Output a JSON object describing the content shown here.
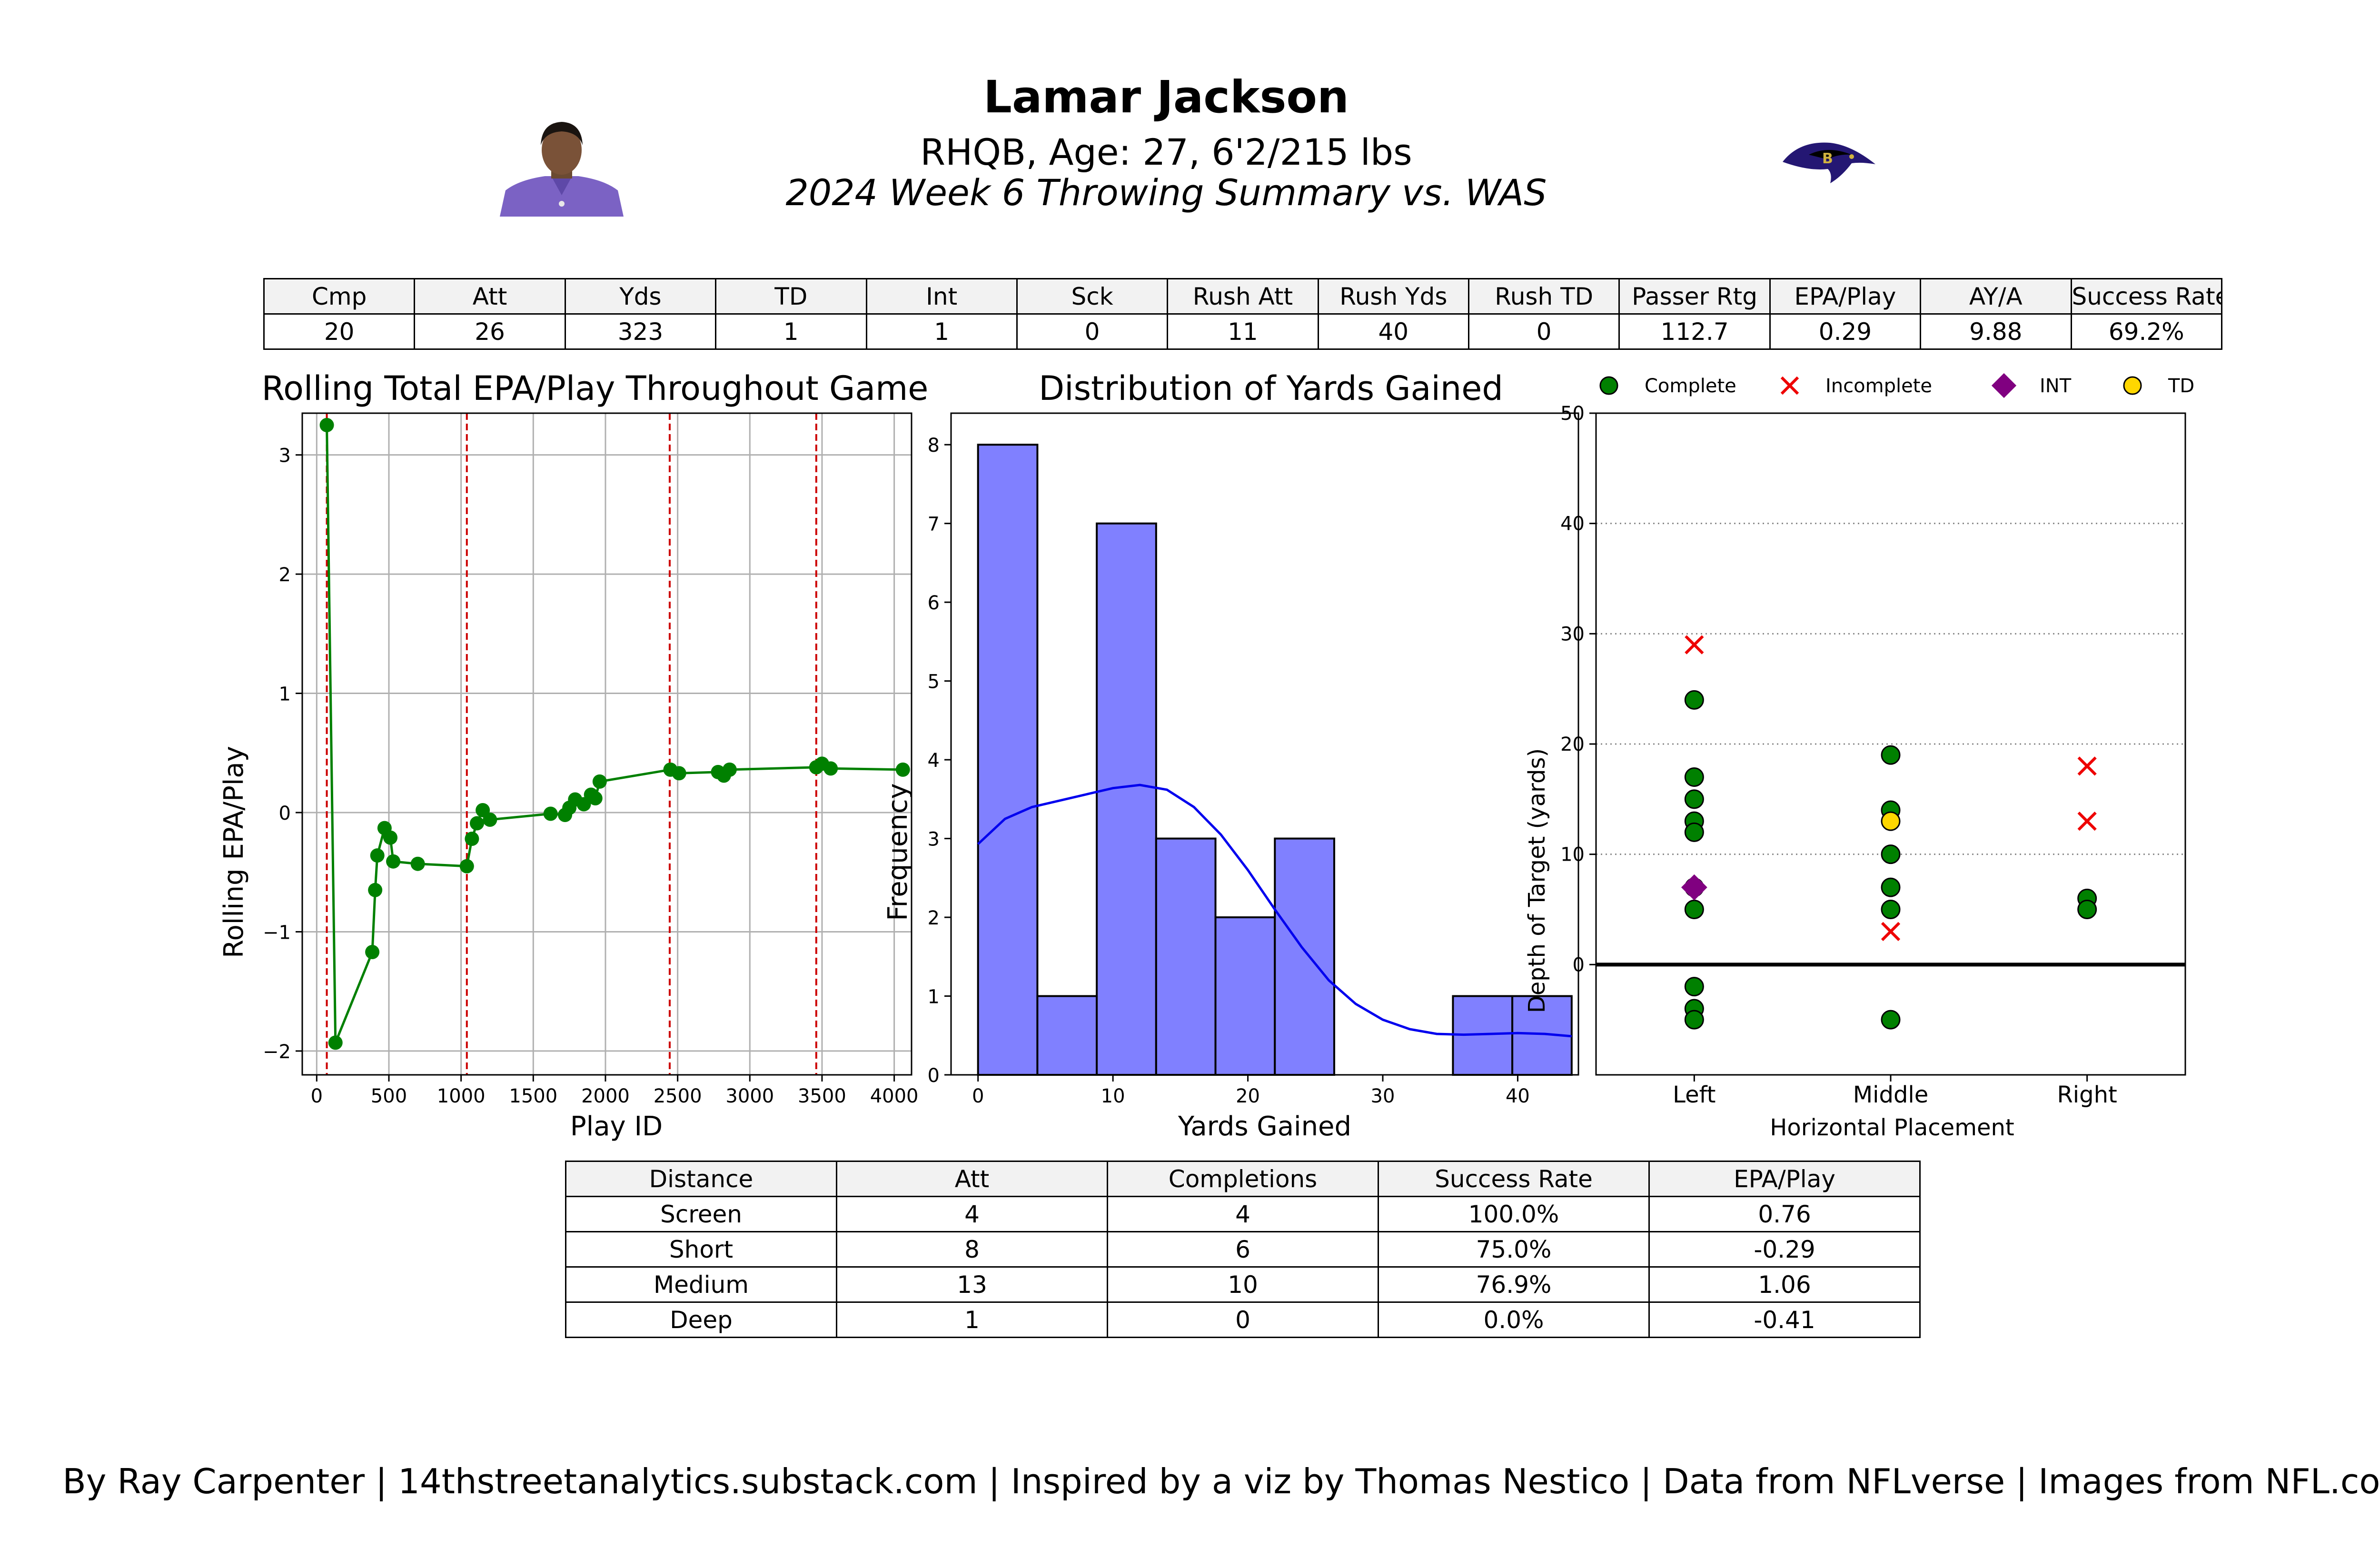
{
  "header": {
    "name": "Lamar Jackson",
    "subtitle": "RHQB, Age: 27, 6'2/215 lbs",
    "game_title": "2024 Week 6 Throwing Summary vs. WAS"
  },
  "stats_table": {
    "headers": [
      "Cmp",
      "Att",
      "Yds",
      "TD",
      "Int",
      "Sck",
      "Rush Att",
      "Rush Yds",
      "Rush TD",
      "Passer Rtg",
      "EPA/Play",
      "AY/A",
      "Success Rate"
    ],
    "values": [
      "20",
      "26",
      "323",
      "1",
      "1",
      "0",
      "11",
      "40",
      "0",
      "112.7",
      "0.29",
      "9.88",
      "69.2%"
    ]
  },
  "distance_table": {
    "headers": [
      "Distance",
      "Att",
      "Completions",
      "Success Rate",
      "EPA/Play"
    ],
    "rows": [
      [
        "Screen",
        "4",
        "4",
        "100.0%",
        "0.76"
      ],
      [
        "Short",
        "8",
        "6",
        "75.0%",
        "-0.29"
      ],
      [
        "Medium",
        "13",
        "10",
        "76.9%",
        "1.06"
      ],
      [
        "Deep",
        "1",
        "0",
        "0.0%",
        "-0.41"
      ]
    ]
  },
  "footer": "By Ray Carpenter | 14thstreetanalytics.substack.com | Inspired by a viz by Thomas Nestico | Data from NFLverse | Images from NFL.com",
  "colors": {
    "line": "#008000",
    "quarter_line": "#cc0000",
    "hist_fill": "#8080ff",
    "kde": "#0000ee",
    "complete": "#008000",
    "incomplete": "#ee0000",
    "int": "#800080",
    "td": "#ffd700",
    "team_purple": "#241773",
    "jersey": "#7b62c4"
  },
  "icons": {
    "player": "player-headshot-icon",
    "team": "ravens-logo-icon"
  },
  "chart_data": [
    {
      "type": "line",
      "title": "Rolling Total EPA/Play Throughout Game",
      "xlabel": "Play ID",
      "ylabel": "Rolling EPA/Play",
      "xlim": [
        -100,
        4120
      ],
      "ylim": [
        -2.2,
        3.35
      ],
      "xticks": [
        0,
        500,
        1000,
        1500,
        2000,
        2500,
        3000,
        3500,
        4000
      ],
      "yticks": [
        -2,
        -1,
        0,
        1,
        2,
        3
      ],
      "grid": true,
      "quarter_lines": [
        70,
        1040,
        2445,
        3460
      ],
      "x": [
        70,
        130,
        385,
        405,
        420,
        470,
        510,
        530,
        700,
        1040,
        1075,
        1110,
        1150,
        1200,
        1620,
        1720,
        1750,
        1790,
        1850,
        1900,
        1930,
        1960,
        2450,
        2510,
        2780,
        2820,
        2860,
        3460,
        3500,
        3560,
        4060
      ],
      "y": [
        3.25,
        -1.93,
        -1.17,
        -0.65,
        -0.36,
        -0.13,
        -0.21,
        -0.41,
        -0.43,
        -0.45,
        -0.22,
        -0.09,
        0.02,
        -0.06,
        -0.01,
        -0.02,
        0.04,
        0.11,
        0.07,
        0.15,
        0.12,
        0.26,
        0.36,
        0.33,
        0.34,
        0.31,
        0.36,
        0.38,
        0.41,
        0.37,
        0.36
      ]
    },
    {
      "type": "bar",
      "title": "Distribution of Yards Gained",
      "xlabel": "Yards Gained",
      "ylabel": "Frequency",
      "xlim": [
        -2,
        44.5
      ],
      "ylim": [
        0,
        8.4
      ],
      "xticks": [
        0,
        10,
        20,
        30,
        40
      ],
      "yticks": [
        0,
        1,
        2,
        3,
        4,
        5,
        6,
        7,
        8
      ],
      "bin_edges": [
        0,
        4.4,
        8.8,
        13.2,
        17.6,
        22,
        26.4,
        30.8,
        35.2,
        39.6,
        44
      ],
      "counts": [
        8,
        1,
        7,
        3,
        2,
        3,
        0,
        0,
        1,
        1
      ],
      "kde_x": [
        0,
        2,
        4,
        6,
        8,
        10,
        12,
        14,
        16,
        18,
        20,
        22,
        24,
        26,
        28,
        30,
        32,
        34,
        36,
        38,
        40,
        42,
        44
      ],
      "kde_y": [
        2.93,
        3.25,
        3.4,
        3.48,
        3.56,
        3.64,
        3.68,
        3.62,
        3.4,
        3.05,
        2.6,
        2.1,
        1.62,
        1.2,
        0.9,
        0.7,
        0.58,
        0.52,
        0.51,
        0.52,
        0.53,
        0.52,
        0.49
      ]
    },
    {
      "type": "scatter",
      "xlabel": "Horizontal Placement",
      "ylabel": "Depth of Target (yards)",
      "categories": [
        "Left",
        "Middle",
        "Right"
      ],
      "ylim": [
        -10,
        50
      ],
      "yticks": [
        0,
        10,
        20,
        30,
        40,
        50
      ],
      "grid": "horizontal dotted",
      "legend_placement": "top",
      "series": [
        {
          "name": "Complete",
          "points": [
            [
              "Left",
              24
            ],
            [
              "Left",
              17
            ],
            [
              "Left",
              15
            ],
            [
              "Left",
              13
            ],
            [
              "Left",
              12
            ],
            [
              "Left",
              7
            ],
            [
              "Left",
              5
            ],
            [
              "Left",
              -2
            ],
            [
              "Left",
              -4
            ],
            [
              "Left",
              -5
            ],
            [
              "Middle",
              19
            ],
            [
              "Middle",
              14
            ],
            [
              "Middle",
              10
            ],
            [
              "Middle",
              7
            ],
            [
              "Middle",
              5
            ],
            [
              "Middle",
              -5
            ],
            [
              "Right",
              6
            ],
            [
              "Right",
              5
            ]
          ]
        },
        {
          "name": "Incomplete",
          "points": [
            [
              "Left",
              29
            ],
            [
              "Middle",
              3
            ],
            [
              "Right",
              18
            ],
            [
              "Right",
              13
            ]
          ]
        },
        {
          "name": "INT",
          "points": [
            [
              "Left",
              7
            ]
          ]
        },
        {
          "name": "TD",
          "points": [
            [
              "Middle",
              13
            ]
          ]
        }
      ]
    }
  ]
}
